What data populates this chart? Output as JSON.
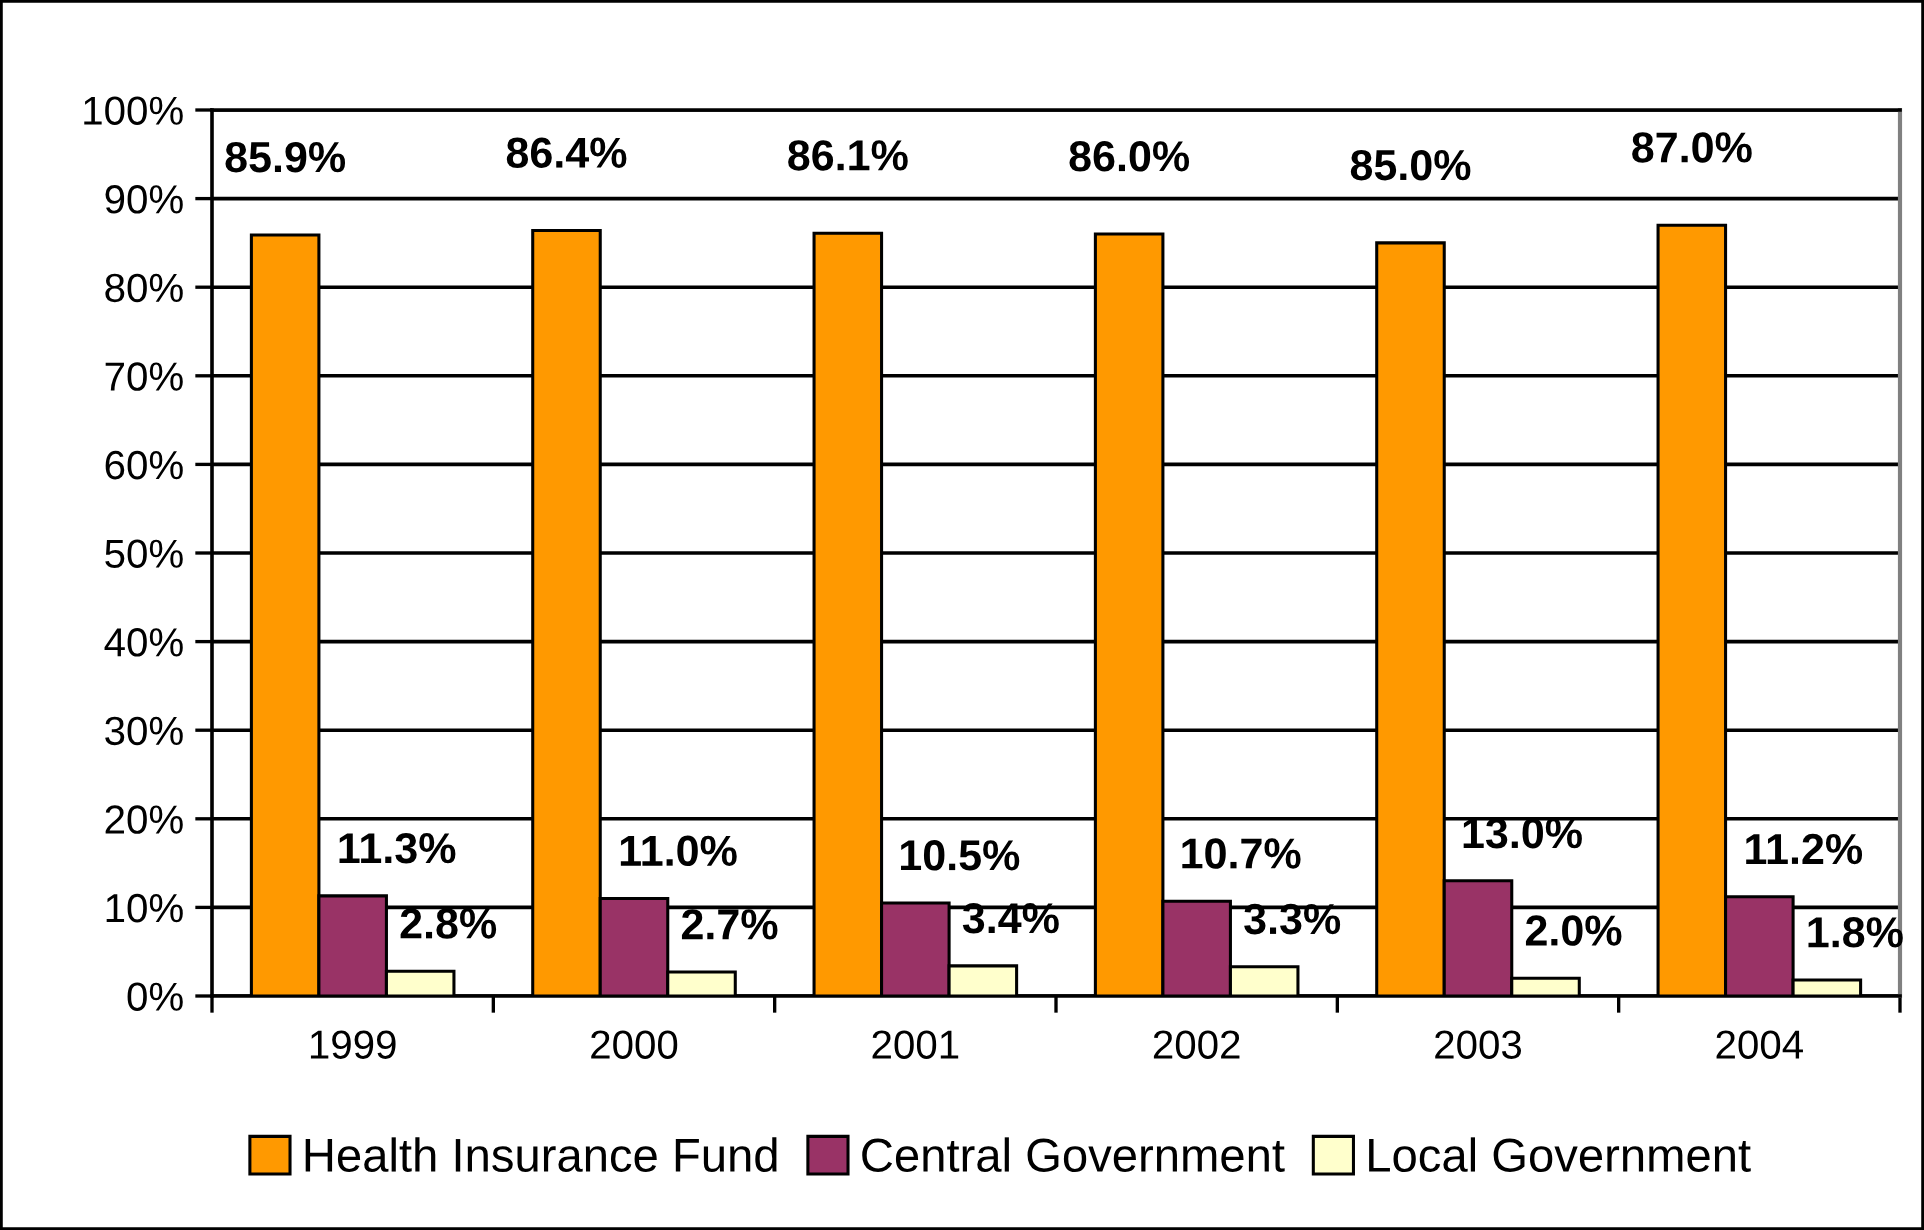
{
  "chart_data": {
    "type": "bar",
    "categories": [
      "1999",
      "2000",
      "2001",
      "2002",
      "2003",
      "2004"
    ],
    "series": [
      {
        "name": "Health Insurance Fund",
        "color": "#ff9900",
        "values": [
          85.9,
          86.4,
          86.1,
          86.0,
          85.0,
          87.0
        ],
        "value_labels": [
          "85.9%",
          "86.4%",
          "86.1%",
          "86.0%",
          "85.0%",
          "87.0%"
        ]
      },
      {
        "name": "Central Government",
        "color": "#993366",
        "values": [
          11.3,
          11.0,
          10.5,
          10.7,
          13.0,
          11.2
        ],
        "value_labels": [
          "11.3%",
          "11.0%",
          "10.5%",
          "10.7%",
          "13.0%",
          "11.2%"
        ]
      },
      {
        "name": "Local Government",
        "color": "#ffffcc",
        "values": [
          2.8,
          2.7,
          3.4,
          3.3,
          2.0,
          1.8
        ],
        "value_labels": [
          "2.8%",
          "2.7%",
          "3.4%",
          "3.3%",
          "2.0%",
          "1.8%"
        ]
      }
    ],
    "ylim": [
      0,
      100
    ],
    "yticks": [
      {
        "value": 0,
        "label": "0%"
      },
      {
        "value": 10,
        "label": "10%"
      },
      {
        "value": 20,
        "label": "20%"
      },
      {
        "value": 30,
        "label": "30%"
      },
      {
        "value": 40,
        "label": "40%"
      },
      {
        "value": 50,
        "label": "50%"
      },
      {
        "value": 60,
        "label": "60%"
      },
      {
        "value": 70,
        "label": "70%"
      },
      {
        "value": 80,
        "label": "80%"
      },
      {
        "value": 90,
        "label": "90%"
      },
      {
        "value": 100,
        "label": "100%"
      }
    ],
    "grid": "y",
    "legend": "bottom"
  }
}
